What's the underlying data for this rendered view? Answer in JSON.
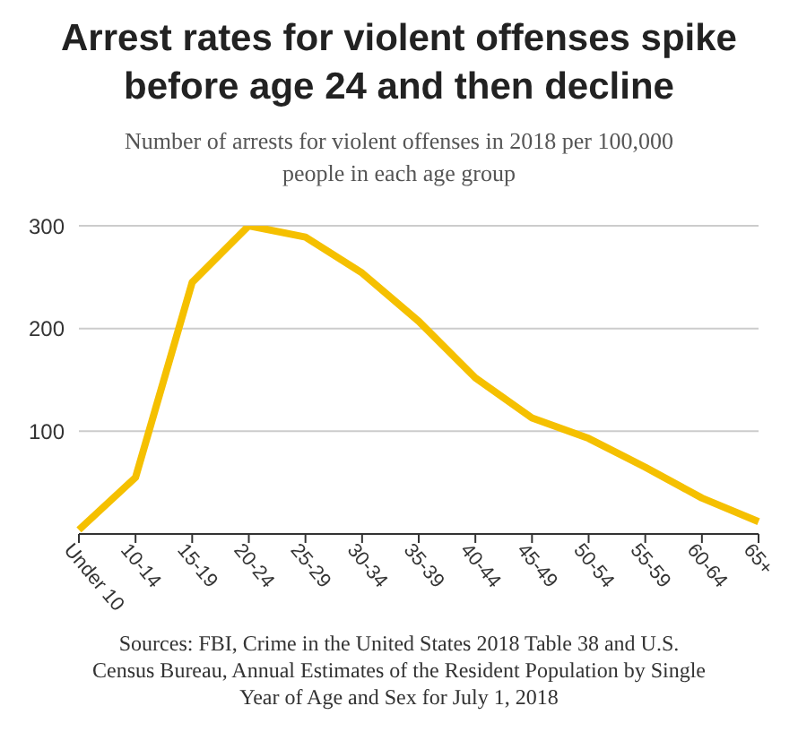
{
  "chart_data": {
    "type": "line",
    "title": "Arrest rates for violent offenses spike before age 24 and then decline",
    "subtitle": "Number of arrests for violent offenses in 2018 per 100,000 people in each age group",
    "categories": [
      "Under 10",
      "10-14",
      "15-19",
      "20-24",
      "25-29",
      "30-34",
      "35-39",
      "40-44",
      "45-49",
      "50-54",
      "55-59",
      "60-64",
      "65+"
    ],
    "series": [
      {
        "color": "#f5c000",
        "values": [
          4,
          55,
          245,
          300,
          289,
          254,
          207,
          152,
          113,
          93,
          65,
          35,
          12
        ]
      }
    ],
    "ylim": [
      0,
      300
    ],
    "yticks": [
      {
        "value": 0,
        "label": null
      },
      100,
      200,
      300
    ],
    "grid": "y",
    "marker": "none",
    "line_style": "solid",
    "annotations": [
      "Sources: FBI, Crime in the United States 2018 Table 38 and U.S. Census Bureau, Annual Estimates of the Resident Population by Single Year of Age and Sex for July 1, 2018"
    ]
  }
}
